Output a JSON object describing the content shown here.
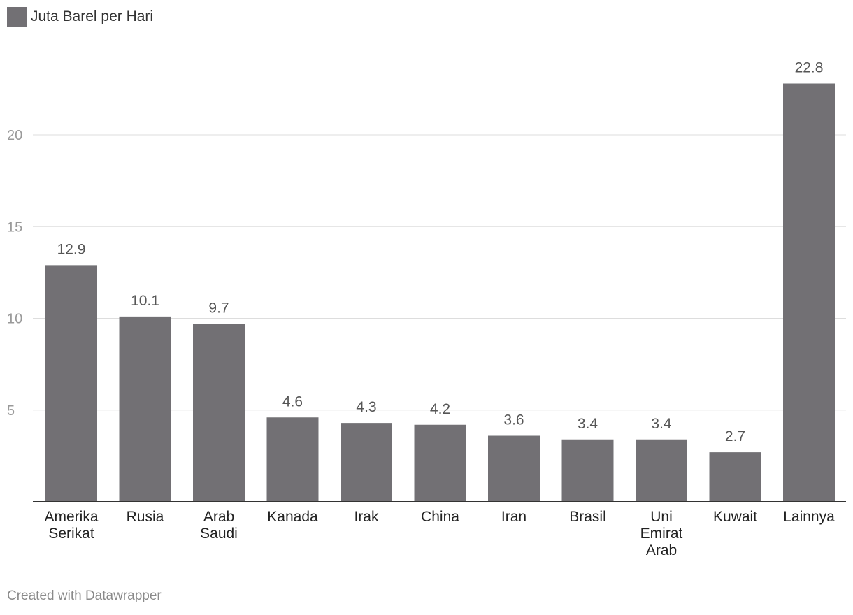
{
  "legend": {
    "label": "Juta Barel per Hari"
  },
  "footer": {
    "credit": "Created with Datawrapper"
  },
  "colors": {
    "bar": "#727074",
    "grid": "#dddddd",
    "axis": "#333333",
    "tick_text": "#999999",
    "value_text": "#555555",
    "category_text": "#222222"
  },
  "chart_data": {
    "type": "bar",
    "categories": [
      [
        "Amerika",
        "Serikat"
      ],
      [
        "Rusia"
      ],
      [
        "Arab",
        "Saudi"
      ],
      [
        "Kanada"
      ],
      [
        "Irak"
      ],
      [
        "China"
      ],
      [
        "Iran"
      ],
      [
        "Brasil"
      ],
      [
        "Uni",
        "Emirat",
        "Arab"
      ],
      [
        "Kuwait"
      ],
      [
        "Lainnya"
      ]
    ],
    "series": [
      {
        "name": "Juta Barel per Hari",
        "values": [
          12.9,
          10.1,
          9.7,
          4.6,
          4.3,
          4.2,
          3.6,
          3.4,
          3.4,
          2.7,
          22.8
        ]
      }
    ],
    "yticks": [
      5,
      10,
      15,
      20
    ],
    "ylim": [
      0,
      25
    ],
    "grid": true,
    "legend_position": "top-left"
  }
}
